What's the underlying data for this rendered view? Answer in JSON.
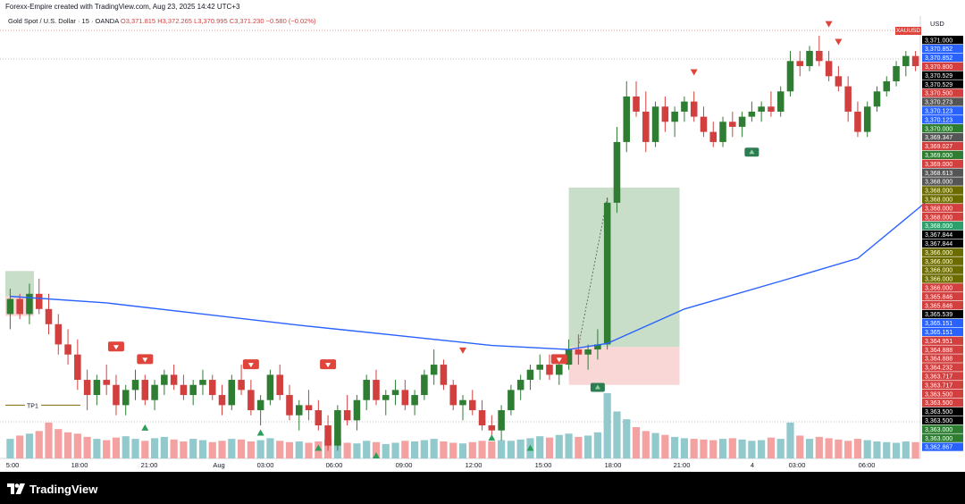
{
  "header": {
    "attribution": "Forexx-Empire created with TradingView.com, Aug 23, 2025 14:42 UTC+3"
  },
  "legend": {
    "symbol": "Gold Spot / U.S. Dollar · 15 · OANDA",
    "open": "O3,371.815",
    "high": "H3,372.265",
    "low": "L3,370.995",
    "close": "C3,371.230",
    "change": "−0.580 (−0.02%)"
  },
  "currency_label": "USD",
  "symbol_tag": "XAUUSD",
  "tp_label": "TP1",
  "footer": {
    "brand": "TradingView"
  },
  "colors": {
    "up": "#2e7d32",
    "down": "#d1403f",
    "ma": "#2962ff",
    "vol_up": "#92c9cd",
    "vol_down": "#f4a1a1",
    "long_target": "#a5c8a5",
    "long_stop": "#f7c6c6",
    "tp_line": "#7f6a00"
  },
  "chart_data": {
    "type": "candlestick",
    "time_axis_labels": [
      "5:00",
      "18:00",
      "21:00",
      "Aug",
      "03:00",
      "06:00",
      "09:00",
      "12:00",
      "15:00",
      "18:00",
      "21:00",
      "4",
      "03:00",
      "06:00"
    ],
    "price_axis_labels": [
      {
        "price": 3371.0,
        "text": "3,371.000",
        "color": "#000000"
      },
      {
        "price": 3370.852,
        "text": "3,370.852",
        "color": "#2962ff"
      },
      {
        "price": 3370.852,
        "text": "3,370.852",
        "color": "#2962ff"
      },
      {
        "price": 3370.8,
        "text": "3,370.800",
        "color": "#d1403f"
      },
      {
        "price": 3370.529,
        "text": "3,370.529",
        "color": "#000000"
      },
      {
        "price": 3370.529,
        "text": "3,370.529",
        "color": "#000000"
      },
      {
        "price": 3370.5,
        "text": "3,370.500",
        "color": "#d1403f"
      },
      {
        "price": 3370.273,
        "text": "3,370.273",
        "color": "#555555"
      },
      {
        "price": 3370.123,
        "text": "3,370.123",
        "color": "#2962ff"
      },
      {
        "price": 3370.123,
        "text": "3,370.123",
        "color": "#2962ff"
      },
      {
        "price": 3370.0,
        "text": "3,370.000",
        "color": "#2e7d32"
      },
      {
        "price": 3369.347,
        "text": "3,369.347",
        "color": "#555555"
      },
      {
        "price": 3369.027,
        "text": "3,369.027",
        "color": "#d1403f"
      },
      {
        "price": 3369.0,
        "text": "3,369.000",
        "color": "#2e7d32"
      },
      {
        "price": 3369.0,
        "text": "3,369.000",
        "color": "#d1403f"
      },
      {
        "price": 3368.613,
        "text": "3,368.613",
        "color": "#555555"
      },
      {
        "price": 3368.0,
        "text": "3,368.000",
        "color": "#555555"
      },
      {
        "price": 3368.0,
        "text": "3,368.000",
        "color": "#6b6b00"
      },
      {
        "price": 3368.0,
        "text": "3,368.000",
        "color": "#6b6b00"
      },
      {
        "price": 3368.0,
        "text": "3,368.000",
        "color": "#d1403f"
      },
      {
        "price": 3368.0,
        "text": "3,368.000",
        "color": "#d1403f"
      },
      {
        "price": 3368.0,
        "text": "3,368.000",
        "color": "#2e9e6b"
      },
      {
        "price": 3367.844,
        "text": "3,367.844",
        "color": "#000000"
      },
      {
        "price": 3367.844,
        "text": "3,367.844",
        "color": "#000000"
      },
      {
        "price": 3366.0,
        "text": "3,366.000",
        "color": "#6b6b00"
      },
      {
        "price": 3366.0,
        "text": "3,366.000",
        "color": "#6b6b00"
      },
      {
        "price": 3366.0,
        "text": "3,366.000",
        "color": "#6b6b00"
      },
      {
        "price": 3366.0,
        "text": "3,366.000",
        "color": "#6b6b00"
      },
      {
        "price": 3366.0,
        "text": "3,366.000",
        "color": "#d1403f"
      },
      {
        "price": 3365.846,
        "text": "3,365.846",
        "color": "#d1403f"
      },
      {
        "price": 3365.846,
        "text": "3,365.846",
        "color": "#d1403f"
      },
      {
        "price": 3365.539,
        "text": "3,365.539",
        "color": "#000000"
      },
      {
        "price": 3365.151,
        "text": "3,365.151",
        "color": "#2962ff"
      },
      {
        "price": 3365.151,
        "text": "3,365.151",
        "color": "#2962ff"
      },
      {
        "price": 3364.951,
        "text": "3,364.951",
        "color": "#d1403f"
      },
      {
        "price": 3364.888,
        "text": "3,364.888",
        "color": "#d1403f"
      },
      {
        "price": 3364.888,
        "text": "3,364.888",
        "color": "#d1403f"
      },
      {
        "price": 3364.232,
        "text": "3,364.232",
        "color": "#d1403f"
      },
      {
        "price": 3363.717,
        "text": "3,363.717",
        "color": "#d1403f"
      },
      {
        "price": 3363.717,
        "text": "3,363.717",
        "color": "#d1403f"
      },
      {
        "price": 3363.5,
        "text": "3,363.500",
        "color": "#d1403f"
      },
      {
        "price": 3363.5,
        "text": "3,363.500",
        "color": "#d1403f"
      },
      {
        "price": 3363.5,
        "text": "3,363.500",
        "color": "#000000"
      },
      {
        "price": 3363.5,
        "text": "3,363.500",
        "color": "#000000"
      },
      {
        "price": 3363.0,
        "text": "3,363.000",
        "color": "#2e7d32"
      },
      {
        "price": 3363.0,
        "text": "3,363.000",
        "color": "#2e7d32"
      },
      {
        "price": 3362.867,
        "text": "3,362.867",
        "color": "#2962ff"
      }
    ],
    "candles": [
      {
        "o": 3365.6,
        "h": 3366.1,
        "l": 3365.3,
        "c": 3365.9
      },
      {
        "o": 3365.9,
        "h": 3366.0,
        "l": 3365.5,
        "c": 3365.6
      },
      {
        "o": 3365.6,
        "h": 3366.2,
        "l": 3365.4,
        "c": 3366.0
      },
      {
        "o": 3366.0,
        "h": 3366.3,
        "l": 3365.6,
        "c": 3365.7
      },
      {
        "o": 3365.7,
        "h": 3366.0,
        "l": 3365.2,
        "c": 3365.4
      },
      {
        "o": 3365.4,
        "h": 3365.6,
        "l": 3364.8,
        "c": 3365.0
      },
      {
        "o": 3365.0,
        "h": 3365.3,
        "l": 3364.6,
        "c": 3364.8
      },
      {
        "o": 3364.8,
        "h": 3365.1,
        "l": 3364.1,
        "c": 3364.3
      },
      {
        "o": 3364.3,
        "h": 3364.5,
        "l": 3363.7,
        "c": 3364.0
      },
      {
        "o": 3364.0,
        "h": 3364.4,
        "l": 3363.8,
        "c": 3364.3
      },
      {
        "o": 3364.3,
        "h": 3364.6,
        "l": 3364.0,
        "c": 3364.2
      },
      {
        "o": 3364.2,
        "h": 3364.4,
        "l": 3363.6,
        "c": 3363.8
      },
      {
        "o": 3363.8,
        "h": 3364.2,
        "l": 3363.6,
        "c": 3364.1
      },
      {
        "o": 3364.1,
        "h": 3364.5,
        "l": 3363.9,
        "c": 3364.3
      },
      {
        "o": 3364.3,
        "h": 3364.4,
        "l": 3363.8,
        "c": 3363.9
      },
      {
        "o": 3363.9,
        "h": 3364.3,
        "l": 3363.7,
        "c": 3364.2
      },
      {
        "o": 3364.2,
        "h": 3364.5,
        "l": 3364.0,
        "c": 3364.4
      },
      {
        "o": 3364.4,
        "h": 3364.6,
        "l": 3364.1,
        "c": 3364.2
      },
      {
        "o": 3364.2,
        "h": 3364.4,
        "l": 3363.9,
        "c": 3364.0
      },
      {
        "o": 3364.0,
        "h": 3364.3,
        "l": 3363.8,
        "c": 3364.2
      },
      {
        "o": 3364.2,
        "h": 3364.5,
        "l": 3364.0,
        "c": 3364.3
      },
      {
        "o": 3364.3,
        "h": 3364.4,
        "l": 3363.9,
        "c": 3364.0
      },
      {
        "o": 3364.0,
        "h": 3364.2,
        "l": 3363.6,
        "c": 3363.8
      },
      {
        "o": 3363.8,
        "h": 3364.4,
        "l": 3363.7,
        "c": 3364.3
      },
      {
        "o": 3364.3,
        "h": 3364.6,
        "l": 3364.0,
        "c": 3364.1
      },
      {
        "o": 3364.1,
        "h": 3364.3,
        "l": 3363.6,
        "c": 3363.7
      },
      {
        "o": 3363.7,
        "h": 3364.0,
        "l": 3363.4,
        "c": 3363.9
      },
      {
        "o": 3363.9,
        "h": 3364.5,
        "l": 3363.8,
        "c": 3364.4
      },
      {
        "o": 3364.4,
        "h": 3364.6,
        "l": 3363.9,
        "c": 3364.0
      },
      {
        "o": 3364.0,
        "h": 3364.2,
        "l": 3363.5,
        "c": 3363.6
      },
      {
        "o": 3363.6,
        "h": 3363.9,
        "l": 3363.3,
        "c": 3363.8
      },
      {
        "o": 3363.8,
        "h": 3364.1,
        "l": 3363.5,
        "c": 3363.7
      },
      {
        "o": 3363.7,
        "h": 3363.9,
        "l": 3363.3,
        "c": 3363.4
      },
      {
        "o": 3363.4,
        "h": 3363.6,
        "l": 3362.9,
        "c": 3363.0
      },
      {
        "o": 3363.0,
        "h": 3363.8,
        "l": 3362.9,
        "c": 3363.7
      },
      {
        "o": 3363.7,
        "h": 3364.0,
        "l": 3363.4,
        "c": 3363.5
      },
      {
        "o": 3363.5,
        "h": 3364.0,
        "l": 3363.3,
        "c": 3363.9
      },
      {
        "o": 3363.9,
        "h": 3364.4,
        "l": 3363.7,
        "c": 3364.3
      },
      {
        "o": 3364.3,
        "h": 3364.5,
        "l": 3363.8,
        "c": 3363.9
      },
      {
        "o": 3363.9,
        "h": 3364.1,
        "l": 3363.6,
        "c": 3364.0
      },
      {
        "o": 3364.0,
        "h": 3364.3,
        "l": 3363.8,
        "c": 3364.1
      },
      {
        "o": 3364.1,
        "h": 3364.3,
        "l": 3363.7,
        "c": 3363.8
      },
      {
        "o": 3363.8,
        "h": 3364.1,
        "l": 3363.6,
        "c": 3364.0
      },
      {
        "o": 3364.0,
        "h": 3364.5,
        "l": 3363.9,
        "c": 3364.4
      },
      {
        "o": 3364.4,
        "h": 3364.9,
        "l": 3364.2,
        "c": 3364.6
      },
      {
        "o": 3364.6,
        "h": 3364.7,
        "l": 3364.1,
        "c": 3364.2
      },
      {
        "o": 3364.2,
        "h": 3364.3,
        "l": 3363.7,
        "c": 3363.8
      },
      {
        "o": 3363.8,
        "h": 3364.0,
        "l": 3363.5,
        "c": 3363.9
      },
      {
        "o": 3363.9,
        "h": 3364.1,
        "l": 3363.6,
        "c": 3363.7
      },
      {
        "o": 3363.7,
        "h": 3363.9,
        "l": 3363.3,
        "c": 3363.4
      },
      {
        "o": 3363.4,
        "h": 3363.6,
        "l": 3363.1,
        "c": 3363.3
      },
      {
        "o": 3363.3,
        "h": 3363.8,
        "l": 3363.1,
        "c": 3363.7
      },
      {
        "o": 3363.7,
        "h": 3364.2,
        "l": 3363.6,
        "c": 3364.1
      },
      {
        "o": 3364.1,
        "h": 3364.4,
        "l": 3363.9,
        "c": 3364.3
      },
      {
        "o": 3364.3,
        "h": 3364.6,
        "l": 3364.1,
        "c": 3364.5
      },
      {
        "o": 3364.5,
        "h": 3364.8,
        "l": 3364.3,
        "c": 3364.6
      },
      {
        "o": 3364.6,
        "h": 3364.8,
        "l": 3364.3,
        "c": 3364.4
      },
      {
        "o": 3364.4,
        "h": 3364.7,
        "l": 3364.2,
        "c": 3364.6
      },
      {
        "o": 3364.6,
        "h": 3365.1,
        "l": 3364.5,
        "c": 3364.9
      },
      {
        "o": 3364.9,
        "h": 3365.2,
        "l": 3364.6,
        "c": 3364.8
      },
      {
        "o": 3364.8,
        "h": 3365.0,
        "l": 3364.5,
        "c": 3364.9
      },
      {
        "o": 3364.9,
        "h": 3365.3,
        "l": 3364.7,
        "c": 3365.0
      },
      {
        "o": 3365.0,
        "h": 3367.9,
        "l": 3364.9,
        "c": 3367.8
      },
      {
        "o": 3367.8,
        "h": 3369.3,
        "l": 3367.6,
        "c": 3369.0
      },
      {
        "o": 3369.0,
        "h": 3370.2,
        "l": 3368.8,
        "c": 3369.9
      },
      {
        "o": 3369.9,
        "h": 3370.2,
        "l": 3369.5,
        "c": 3369.6
      },
      {
        "o": 3369.6,
        "h": 3370.0,
        "l": 3368.8,
        "c": 3369.0
      },
      {
        "o": 3369.0,
        "h": 3369.8,
        "l": 3368.9,
        "c": 3369.7
      },
      {
        "o": 3369.7,
        "h": 3369.9,
        "l": 3369.2,
        "c": 3369.4
      },
      {
        "o": 3369.4,
        "h": 3369.7,
        "l": 3369.1,
        "c": 3369.6
      },
      {
        "o": 3369.6,
        "h": 3369.9,
        "l": 3369.4,
        "c": 3369.8
      },
      {
        "o": 3369.8,
        "h": 3370.0,
        "l": 3369.4,
        "c": 3369.5
      },
      {
        "o": 3369.5,
        "h": 3369.7,
        "l": 3369.1,
        "c": 3369.2
      },
      {
        "o": 3369.2,
        "h": 3369.4,
        "l": 3368.9,
        "c": 3369.0
      },
      {
        "o": 3369.0,
        "h": 3369.5,
        "l": 3368.9,
        "c": 3369.4
      },
      {
        "o": 3369.4,
        "h": 3369.6,
        "l": 3369.1,
        "c": 3369.3
      },
      {
        "o": 3369.3,
        "h": 3369.6,
        "l": 3369.1,
        "c": 3369.5
      },
      {
        "o": 3369.5,
        "h": 3369.8,
        "l": 3369.4,
        "c": 3369.6
      },
      {
        "o": 3369.6,
        "h": 3369.8,
        "l": 3369.4,
        "c": 3369.7
      },
      {
        "o": 3369.7,
        "h": 3370.0,
        "l": 3369.5,
        "c": 3369.6
      },
      {
        "o": 3369.6,
        "h": 3370.1,
        "l": 3369.5,
        "c": 3370.0
      },
      {
        "o": 3370.0,
        "h": 3370.8,
        "l": 3369.9,
        "c": 3370.6
      },
      {
        "o": 3370.6,
        "h": 3370.8,
        "l": 3370.3,
        "c": 3370.5
      },
      {
        "o": 3370.5,
        "h": 3370.9,
        "l": 3370.4,
        "c": 3370.8
      },
      {
        "o": 3370.8,
        "h": 3371.1,
        "l": 3370.5,
        "c": 3370.6
      },
      {
        "o": 3370.6,
        "h": 3370.8,
        "l": 3370.2,
        "c": 3370.3
      },
      {
        "o": 3370.3,
        "h": 3370.5,
        "l": 3370.0,
        "c": 3370.1
      },
      {
        "o": 3370.1,
        "h": 3370.3,
        "l": 3369.4,
        "c": 3369.6
      },
      {
        "o": 3369.6,
        "h": 3369.8,
        "l": 3369.1,
        "c": 3369.2
      },
      {
        "o": 3369.2,
        "h": 3369.8,
        "l": 3369.1,
        "c": 3369.7
      },
      {
        "o": 3369.7,
        "h": 3370.1,
        "l": 3369.6,
        "c": 3370.0
      },
      {
        "o": 3370.0,
        "h": 3370.3,
        "l": 3369.9,
        "c": 3370.2
      },
      {
        "o": 3370.2,
        "h": 3370.6,
        "l": 3370.1,
        "c": 3370.5
      },
      {
        "o": 3370.5,
        "h": 3370.8,
        "l": 3370.3,
        "c": 3370.7
      },
      {
        "o": 3370.7,
        "h": 3370.8,
        "l": 3370.4,
        "c": 3370.5
      }
    ],
    "volume": [
      0.3,
      0.35,
      0.38,
      0.42,
      0.55,
      0.45,
      0.4,
      0.38,
      0.33,
      0.3,
      0.28,
      0.32,
      0.34,
      0.3,
      0.27,
      0.31,
      0.33,
      0.29,
      0.26,
      0.3,
      0.28,
      0.25,
      0.27,
      0.3,
      0.29,
      0.26,
      0.28,
      0.31,
      0.27,
      0.25,
      0.26,
      0.24,
      0.26,
      0.29,
      0.28,
      0.24,
      0.23,
      0.27,
      0.25,
      0.22,
      0.24,
      0.27,
      0.26,
      0.28,
      0.3,
      0.26,
      0.24,
      0.23,
      0.25,
      0.27,
      0.26,
      0.28,
      0.27,
      0.29,
      0.31,
      0.34,
      0.32,
      0.36,
      0.38,
      0.33,
      0.35,
      0.4,
      1.0,
      0.72,
      0.6,
      0.48,
      0.42,
      0.39,
      0.36,
      0.33,
      0.31,
      0.3,
      0.29,
      0.28,
      0.3,
      0.31,
      0.29,
      0.27,
      0.28,
      0.32,
      0.3,
      0.55,
      0.35,
      0.3,
      0.33,
      0.31,
      0.29,
      0.27,
      0.3,
      0.28,
      0.26,
      0.25,
      0.24,
      0.26,
      0.25
    ],
    "ma": [
      {
        "i": 0,
        "v": 3365.95
      },
      {
        "i": 10,
        "v": 3365.82
      },
      {
        "i": 20,
        "v": 3365.6
      },
      {
        "i": 30,
        "v": 3365.38
      },
      {
        "i": 40,
        "v": 3365.18
      },
      {
        "i": 50,
        "v": 3364.98
      },
      {
        "i": 58,
        "v": 3364.9
      },
      {
        "i": 62,
        "v": 3365.02
      },
      {
        "i": 70,
        "v": 3365.7
      },
      {
        "i": 80,
        "v": 3366.25
      },
      {
        "i": 88,
        "v": 3366.7
      },
      {
        "i": 95,
        "v": 3367.8
      }
    ],
    "position": {
      "entry": 3364.95,
      "target": 3368.1,
      "stop": 3364.2
    },
    "tp1": 3363.8,
    "ylim": [
      3362.8,
      3371.1
    ]
  }
}
